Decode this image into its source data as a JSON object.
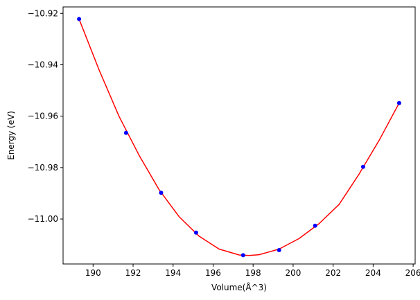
{
  "chart_data": {
    "type": "scatter",
    "title": "",
    "xlabel": "Volume(Å^3)",
    "ylabel": "Energy (eV)",
    "xlim": [
      188.5,
      206.1
    ],
    "ylim": [
      -11.0175,
      -10.9175
    ],
    "grid": false,
    "legend": "none",
    "x_ticks": [
      190,
      192,
      194,
      196,
      198,
      200,
      202,
      204,
      206
    ],
    "y_ticks": [
      -10.92,
      -10.94,
      -10.96,
      -10.98,
      -11.0
    ],
    "y_tick_labels": [
      "−10.92",
      "−10.94",
      "−10.96",
      "−10.98",
      "−11.00"
    ],
    "series": [
      {
        "kind": "points",
        "color": "#0000ff",
        "x": [
          189.3,
          191.65,
          193.4,
          195.15,
          197.5,
          199.3,
          201.1,
          203.5,
          205.3
        ],
        "y": [
          -10.9222,
          -10.9665,
          -10.9898,
          -11.0053,
          -11.0141,
          -11.0121,
          -11.0026,
          -10.9797,
          -10.9549
        ]
      },
      {
        "kind": "fit-curve",
        "color": "#ff0000",
        "x": [
          189.3,
          190.3,
          191.3,
          192.3,
          193.3,
          194.3,
          195.3,
          196.3,
          197.3,
          197.8,
          198.3,
          199.3,
          200.3,
          201.3,
          202.3,
          203.3,
          204.3,
          205.3
        ],
        "y": [
          -10.9222,
          -10.942,
          -10.9601,
          -10.9752,
          -10.9886,
          -10.9991,
          -11.0067,
          -11.0117,
          -11.014,
          -11.0142,
          -11.0139,
          -11.0117,
          -11.0076,
          -11.0018,
          -10.9943,
          -10.9825,
          -10.9694,
          -10.9549
        ]
      }
    ]
  }
}
